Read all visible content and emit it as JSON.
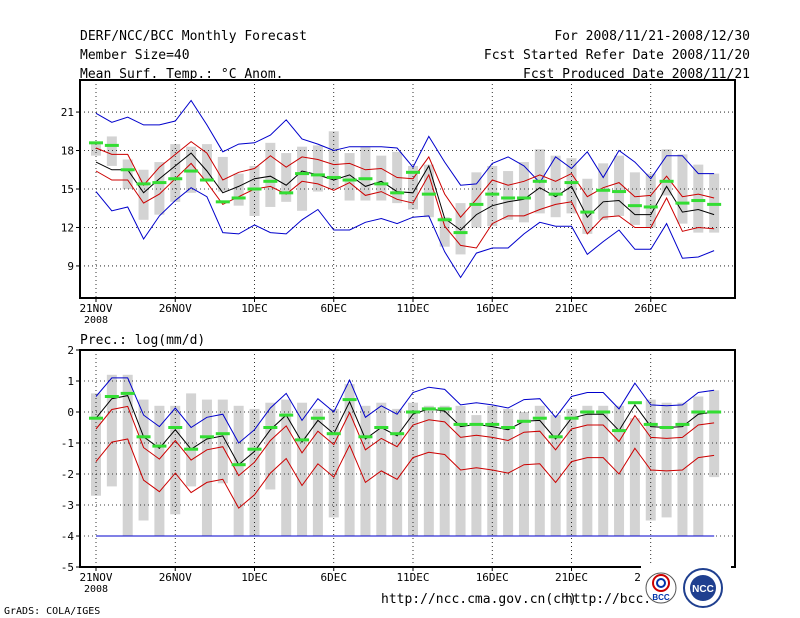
{
  "header": {
    "title": "DERF/NCC/BCC Monthly Forecast",
    "member_size": "Member Size=40",
    "temp_label": "Mean Surf. Temp.: °C Anom.",
    "period": "For 2008/11/21-2008/12/30",
    "started": "Fcst Started Refer Date 2008/11/20",
    "produced": "Fcst Produced Date 2008/11/21"
  },
  "colors": {
    "max_min": "#0000cc",
    "quantile": "#cc0000",
    "ensemble_mean": "#000000",
    "box": "#d3d3d3",
    "mark": "#33dd33",
    "floor_line": "#0000cc"
  },
  "chart_data": [
    {
      "type": "line",
      "panel": "temperature",
      "ylabel": "Mean Surf. Temp.: °C Anom.",
      "ylim": [
        6.5,
        23.5
      ],
      "yticks": [
        9,
        12,
        15,
        18,
        21
      ],
      "xlim": [
        0,
        40
      ],
      "x_ticks": [
        {
          "day": 1,
          "label": "21NOV",
          "sublabel": "2008"
        },
        {
          "day": 6,
          "label": "26NOV"
        },
        {
          "day": 11,
          "label": "1DEC"
        },
        {
          "day": 16,
          "label": "6DEC"
        },
        {
          "day": 21,
          "label": "11DEC"
        },
        {
          "day": 26,
          "label": "16DEC"
        },
        {
          "day": 31,
          "label": "21DEC"
        },
        {
          "day": 36,
          "label": "26DEC"
        }
      ],
      "boxes": {
        "low": [
          17.6,
          16.8,
          15.0,
          12.6,
          13.0,
          14.0,
          14.7,
          15.6,
          14.8,
          13.7,
          12.9,
          13.6,
          14.0,
          13.3,
          14.8,
          15.0,
          14.1,
          14.1,
          14.1,
          13.9,
          13.4,
          12.8,
          10.5,
          9.9,
          12.0,
          12.1,
          12.6,
          12.4,
          13.1,
          12.8,
          13.1,
          11.5,
          12.6,
          12.9,
          12.2,
          12.0,
          14.5,
          12.3,
          11.6,
          11.6
        ],
        "high": [
          18.7,
          19.1,
          17.3,
          16.5,
          17.1,
          18.5,
          18.3,
          18.5,
          17.5,
          16.2,
          16.8,
          18.6,
          17.8,
          18.3,
          18.4,
          19.5,
          17.8,
          18.3,
          17.6,
          17.9,
          16.8,
          16.9,
          12.8,
          13.9,
          16.3,
          16.8,
          16.4,
          17.1,
          18.1,
          17.6,
          17.4,
          15.8,
          17.0,
          17.6,
          16.3,
          16.2,
          18.1,
          17.7,
          16.9,
          16.2
        ]
      },
      "marks": [
        18.6,
        18.4,
        16.5,
        15.4,
        15.5,
        15.8,
        16.4,
        15.7,
        14.0,
        14.3,
        15.0,
        15.6,
        14.7,
        16.2,
        16.1,
        15.9,
        15.7,
        15.8,
        15.4,
        14.7,
        16.3,
        14.6,
        12.6,
        11.6,
        13.8,
        14.6,
        14.3,
        14.3,
        15.6,
        14.6,
        15.5,
        13.2,
        14.9,
        14.8,
        13.7,
        13.6,
        15.6,
        13.9,
        14.1,
        13.8
      ],
      "series": [
        {
          "name": "max",
          "color": "#0000cc",
          "values": [
            20.9,
            20.2,
            20.6,
            20.0,
            20.0,
            20.3,
            21.9,
            20.0,
            17.9,
            18.5,
            18.6,
            19.2,
            20.4,
            18.9,
            18.5,
            18.0,
            18.3,
            18.3,
            18.3,
            18.2,
            16.7,
            19.1,
            17.1,
            15.3,
            15.4,
            17.0,
            17.5,
            16.8,
            15.5,
            17.5,
            16.6,
            17.9,
            15.9,
            18.0,
            17.1,
            15.8,
            17.6,
            17.6,
            16.2,
            16.2
          ]
        },
        {
          "name": "q_upper",
          "color": "#cc0000",
          "values": [
            18.2,
            17.7,
            17.7,
            15.3,
            16.7,
            17.7,
            18.7,
            17.8,
            15.7,
            16.3,
            16.6,
            17.6,
            16.7,
            17.5,
            17.3,
            16.9,
            17.0,
            16.5,
            16.6,
            15.9,
            15.8,
            17.5,
            14.6,
            12.8,
            14.2,
            15.7,
            15.3,
            15.6,
            16.1,
            15.6,
            16.2,
            14.4,
            15.1,
            15.5,
            14.4,
            14.5,
            16.0,
            14.4,
            14.6,
            14.3
          ]
        },
        {
          "name": "mean",
          "color": "#000000",
          "values": [
            17.1,
            16.5,
            16.5,
            14.7,
            15.8,
            16.8,
            17.8,
            16.4,
            14.7,
            15.2,
            15.8,
            16.0,
            15.3,
            16.4,
            16.1,
            15.7,
            16.1,
            15.2,
            15.6,
            14.8,
            14.7,
            16.8,
            12.7,
            11.8,
            13.0,
            13.7,
            14.0,
            14.2,
            15.1,
            14.4,
            15.2,
            12.8,
            14.0,
            14.1,
            13.0,
            13.0,
            15.2,
            13.2,
            13.4,
            13.0
          ]
        },
        {
          "name": "q_lower",
          "color": "#cc0000",
          "values": [
            16.4,
            15.7,
            15.7,
            13.9,
            14.6,
            15.8,
            17.0,
            15.5,
            13.8,
            14.4,
            15.0,
            15.2,
            14.6,
            15.6,
            15.4,
            14.9,
            15.5,
            14.5,
            14.8,
            14.2,
            13.9,
            16.1,
            12.1,
            10.6,
            10.4,
            12.3,
            12.9,
            12.9,
            13.4,
            13.8,
            14.0,
            11.5,
            12.8,
            12.9,
            12.0,
            12.0,
            14.3,
            11.7,
            12.0,
            11.9
          ]
        },
        {
          "name": "min",
          "color": "#0000cc",
          "values": [
            14.8,
            13.3,
            13.6,
            11.1,
            12.9,
            14.1,
            15.1,
            14.4,
            11.6,
            11.5,
            12.2,
            11.6,
            11.5,
            12.6,
            13.4,
            11.8,
            11.8,
            12.4,
            12.7,
            12.3,
            12.8,
            12.9,
            10.1,
            8.1,
            10.0,
            10.4,
            10.4,
            11.5,
            12.4,
            12.1,
            12.1,
            9.9,
            10.9,
            11.8,
            10.3,
            10.3,
            12.3,
            9.6,
            9.7,
            10.2
          ]
        }
      ]
    },
    {
      "type": "line",
      "panel": "precipitation",
      "ylabel": "Prec.: log(mm/d)",
      "ylim": [
        -5,
        2
      ],
      "yticks": [
        -5,
        -4,
        -3,
        -2,
        -1,
        0,
        1,
        2
      ],
      "xlim": [
        0,
        40
      ],
      "x_ticks": [
        {
          "day": 1,
          "label": "21NOV",
          "sublabel": "2008"
        },
        {
          "day": 6,
          "label": "26NOV"
        },
        {
          "day": 11,
          "label": "1DEC"
        },
        {
          "day": 16,
          "label": "6DEC"
        },
        {
          "day": 21,
          "label": "11DEC"
        },
        {
          "day": 26,
          "label": "16DEC"
        },
        {
          "day": 31,
          "label": "21DEC"
        },
        {
          "day": 36,
          "label": "26DEC"
        }
      ],
      "floor_line": -4,
      "boxes": {
        "low": [
          -2.7,
          -2.4,
          -4.0,
          -3.5,
          -4.0,
          -3.3,
          -2.4,
          -4.0,
          -2.3,
          -4.0,
          -4.0,
          -2.5,
          -4.0,
          -4.0,
          -4.0,
          -3.4,
          -4.0,
          -4.0,
          -4.0,
          -4.0,
          -4.0,
          -4.0,
          -4.0,
          -4.0,
          -4.0,
          -4.0,
          -4.0,
          -4.0,
          -4.0,
          -4.0,
          -4.0,
          -4.0,
          -4.0,
          -4.0,
          -4.0,
          -3.5,
          -3.4,
          -4.0,
          -4.0,
          -2.1
        ],
        "high": [
          0.6,
          1.2,
          1.2,
          0.4,
          0.2,
          0.2,
          0.6,
          0.4,
          0.4,
          0.2,
          0.1,
          0.3,
          0.4,
          0.3,
          0.1,
          0.1,
          0.9,
          0.2,
          0.3,
          0.1,
          0.3,
          0.2,
          0.2,
          0.2,
          -0.1,
          0.2,
          0.1,
          0.0,
          0.2,
          -0.1,
          0.1,
          0.2,
          0.2,
          0.2,
          -0.2,
          0.4,
          0.3,
          0.3,
          0.5,
          0.7
        ]
      },
      "marks": [
        -0.2,
        0.5,
        0.6,
        -0.8,
        -1.1,
        -0.5,
        -1.2,
        -0.8,
        -0.7,
        -1.7,
        -1.2,
        -0.5,
        -0.1,
        -0.9,
        -0.2,
        -0.7,
        0.4,
        -0.8,
        -0.5,
        -0.7,
        0.0,
        0.1,
        0.1,
        -0.4,
        -0.4,
        -0.4,
        -0.5,
        -0.3,
        -0.2,
        -0.8,
        -0.2,
        0.0,
        0.0,
        -0.6,
        0.3,
        -0.4,
        -0.5,
        -0.4,
        0.0,
        0.0
      ]
    }
  ],
  "footer": {
    "url1": "http://ncc.cma.gov.cn(ch)",
    "url2": "http://bcc.",
    "credit": "GrADS: COLA/IGES",
    "logo_left_text": "BCC",
    "logo_right_text": "NCC"
  }
}
